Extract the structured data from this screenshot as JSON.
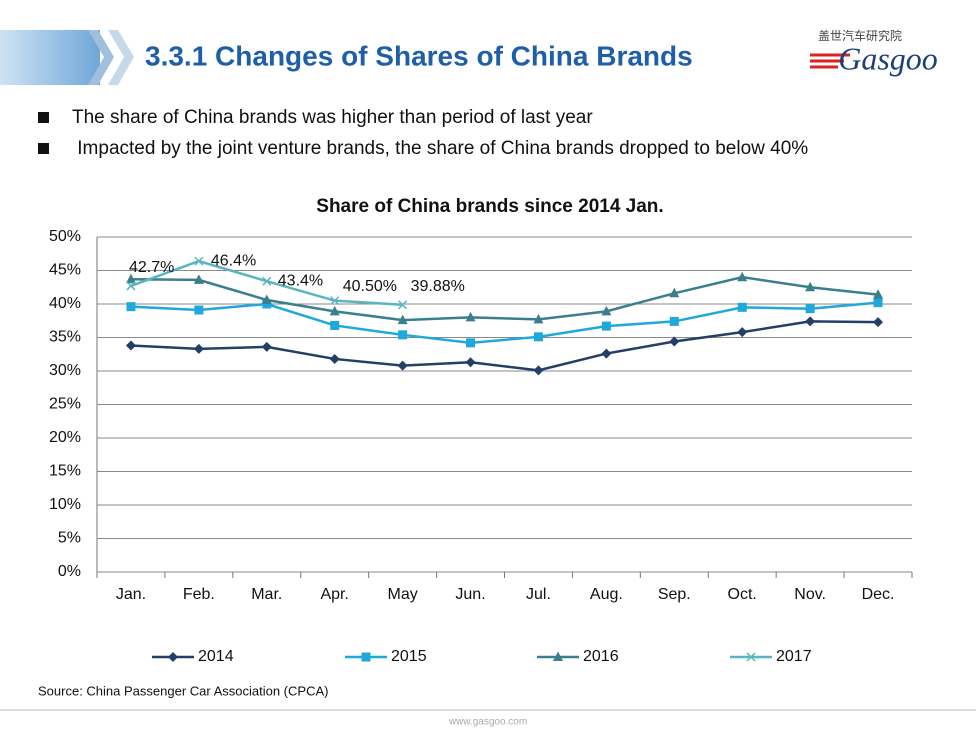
{
  "header": {
    "title": "3.3.1 Changes of Shares of China Brands",
    "logo": "Gasgoo",
    "logo_sub": "盖世汽车研究院"
  },
  "bullets": [
    "The share of China brands was higher than period of last year",
    " Impacted by the joint venture brands, the share of China brands dropped to below 40%"
  ],
  "chart_data": {
    "type": "line",
    "title": "Share of China brands since 2014 Jan.",
    "categories": [
      "Jan.",
      "Feb.",
      "Mar.",
      "Apr.",
      "May",
      "Jun.",
      "Jul.",
      "Aug.",
      "Sep.",
      "Oct.",
      "Nov.",
      "Dec."
    ],
    "ylim": [
      0,
      50
    ],
    "yticks": [
      {
        "value": 0,
        "label": "0%"
      },
      {
        "value": 5,
        "label": "5%"
      },
      {
        "value": 10,
        "label": "10%"
      },
      {
        "value": 15,
        "label": "15%"
      },
      {
        "value": 20,
        "label": "20%"
      },
      {
        "value": 25,
        "label": "25%"
      },
      {
        "value": 30,
        "label": "30%"
      },
      {
        "value": 35,
        "label": "35%"
      },
      {
        "value": 40,
        "label": "40%"
      },
      {
        "value": 45,
        "label": "45%"
      },
      {
        "value": 50,
        "label": "50%"
      }
    ],
    "grid": true,
    "legend": "bottom",
    "series": [
      {
        "name": "2014",
        "color": "#243f66",
        "marker": "diamond",
        "values": [
          33.8,
          33.3,
          33.6,
          31.8,
          30.8,
          31.3,
          30.1,
          32.6,
          34.4,
          35.8,
          37.4,
          37.3
        ]
      },
      {
        "name": "2015",
        "color": "#1ea8dc",
        "marker": "square",
        "values": [
          39.6,
          39.1,
          40.0,
          36.8,
          35.4,
          34.2,
          35.1,
          36.7,
          37.4,
          39.5,
          39.3,
          40.2
        ]
      },
      {
        "name": "2016",
        "color": "#3a7f8d",
        "marker": "triangle",
        "values": [
          43.7,
          43.6,
          40.6,
          38.9,
          37.6,
          38.0,
          37.7,
          38.9,
          41.6,
          44.0,
          42.5,
          41.4
        ]
      },
      {
        "name": "2017",
        "color": "#5ab5bf",
        "marker": "x",
        "values": [
          42.7,
          46.4,
          43.4,
          40.5,
          39.88,
          null,
          null,
          null,
          null,
          null,
          null,
          null
        ],
        "value_labels": [
          "42.7%",
          "46.4%",
          "43.4%",
          "40.50%",
          "39.88%",
          null,
          null,
          null,
          null,
          null,
          null,
          null
        ]
      }
    ]
  },
  "source": "Source: China Passenger Car Association (CPCA)",
  "footer": "www.gasgoo.com"
}
